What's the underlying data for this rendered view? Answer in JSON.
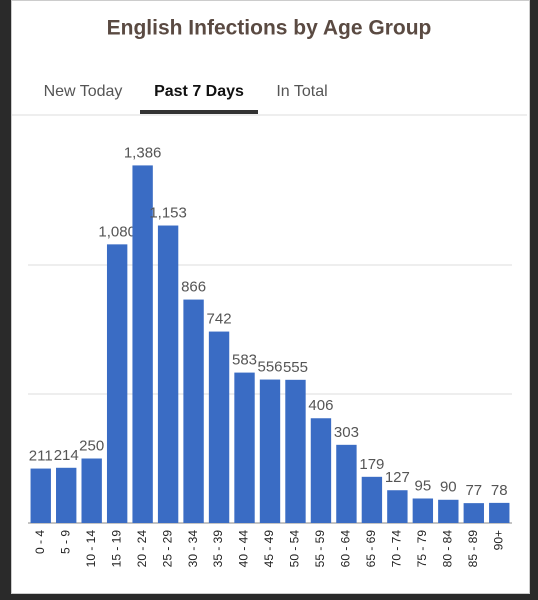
{
  "tabs": [
    {
      "label": "New Today",
      "active": false
    },
    {
      "label": "Past 7 Days",
      "active": true
    },
    {
      "label": "In Total",
      "active": false
    }
  ],
  "chart_data": {
    "type": "bar",
    "title": "English Infections by Age Group",
    "categories": [
      "0 - 4",
      "5 - 9",
      "10 - 14",
      "15 - 19",
      "20 - 24",
      "25 - 29",
      "30 - 34",
      "35 - 39",
      "40 - 44",
      "45 - 49",
      "50 - 54",
      "55 - 59",
      "60 - 64",
      "65 - 69",
      "70 - 74",
      "75 - 79",
      "80 - 84",
      "85 - 89",
      "90+"
    ],
    "values": [
      211,
      214,
      250,
      1080,
      1386,
      1153,
      866,
      742,
      583,
      556,
      555,
      406,
      303,
      179,
      127,
      95,
      90,
      77,
      78
    ],
    "value_labels": [
      "211",
      "214",
      "250",
      "1,080",
      "1,386",
      "1,153",
      "866",
      "742",
      "583",
      "556",
      "555",
      "406",
      "303",
      "179",
      "127",
      "95",
      "90",
      "77",
      "78"
    ],
    "color": "#3a6cc4",
    "ylim": [
      0,
      1500
    ],
    "yticks": [
      0,
      500,
      1000
    ],
    "grid": true
  }
}
